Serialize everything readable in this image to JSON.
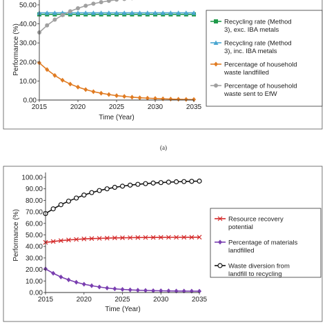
{
  "caption_a": "(a)",
  "chart_data": [
    {
      "type": "line",
      "ylabel": "Performance (%)",
      "xlabel": "Time (Year)",
      "ylim": [
        0,
        50
      ],
      "yticks": [
        "0.00",
        "10.00",
        "20.00",
        "30.00",
        "40.00",
        "50.00"
      ],
      "xticks": [
        "2015",
        "2020",
        "2025",
        "2030",
        "2035"
      ],
      "xlim": [
        2015,
        2035
      ],
      "legend_position": "right",
      "x": [
        2015,
        2016,
        2017,
        2018,
        2019,
        2020,
        2021,
        2022,
        2023,
        2024,
        2025,
        2026,
        2027,
        2028,
        2029,
        2030,
        2031,
        2032,
        2033,
        2034,
        2035
      ],
      "series": [
        {
          "name": "Recycling rate (Method 3), exc. IBA metals",
          "color": "#1f9a4a",
          "marker": "square",
          "values": [
            45.0,
            45.0,
            45.0,
            45.0,
            45.0,
            45.0,
            45.0,
            45.0,
            45.0,
            45.0,
            45.0,
            45.0,
            45.0,
            45.0,
            45.0,
            45.0,
            45.0,
            45.0,
            45.0,
            45.0,
            45.0
          ]
        },
        {
          "name": "Recycling rate (Method 3), inc. IBA metals",
          "color": "#4aa6d0",
          "marker": "triangle",
          "values": [
            45.8,
            45.8,
            45.8,
            45.8,
            45.8,
            45.8,
            45.8,
            45.8,
            45.8,
            45.8,
            45.8,
            45.8,
            45.8,
            45.8,
            45.8,
            45.8,
            45.8,
            45.8,
            45.8,
            45.8,
            45.8
          ]
        },
        {
          "name": "Percentage of household waste landfilled",
          "color": "#e07b22",
          "marker": "diamond",
          "values": [
            19.5,
            16.0,
            12.9,
            10.4,
            8.4,
            6.8,
            5.5,
            4.4,
            3.6,
            2.9,
            2.3,
            1.9,
            1.5,
            1.2,
            1.0,
            0.8,
            0.65,
            0.5,
            0.4,
            0.3,
            0.25
          ]
        },
        {
          "name": "Percentage of household waste sent to EfW",
          "color": "#a0a0a0",
          "marker": "circle",
          "values": [
            35.5,
            39.2,
            42.2,
            44.6,
            46.6,
            48.2,
            49.5,
            50.6,
            51.4,
            52.1,
            52.7,
            53.1,
            53.5,
            53.8,
            54.0,
            54.2,
            54.35,
            54.5,
            54.6,
            54.7,
            54.75
          ]
        }
      ]
    },
    {
      "type": "line",
      "ylabel": "Performance (%)",
      "xlabel": "Time (Year)",
      "ylim": [
        0,
        100
      ],
      "yticks": [
        "0.00",
        "10.00",
        "20.00",
        "30.00",
        "40.00",
        "50.00",
        "60.00",
        "70.00",
        "80.00",
        "90.00",
        "100.00"
      ],
      "xticks": [
        "2015",
        "2020",
        "2025",
        "2030",
        "2035"
      ],
      "xlim": [
        2015,
        2035
      ],
      "legend_position": "right",
      "x": [
        2015,
        2016,
        2017,
        2018,
        2019,
        2020,
        2021,
        2022,
        2023,
        2024,
        2025,
        2026,
        2027,
        2028,
        2029,
        2030,
        2031,
        2032,
        2033,
        2034,
        2035
      ],
      "series": [
        {
          "name": "Resource recovery potential",
          "color": "#d42a2a",
          "marker": "x",
          "values": [
            43.5,
            44.3,
            45.0,
            45.6,
            46.1,
            46.5,
            46.8,
            47.0,
            47.2,
            47.4,
            47.5,
            47.6,
            47.7,
            47.75,
            47.8,
            47.85,
            47.9,
            47.9,
            47.95,
            47.95,
            48.0
          ]
        },
        {
          "name": "Percentage of materials landfilled",
          "color": "#7a3fb0",
          "marker": "diamond",
          "values": [
            20.5,
            16.7,
            13.5,
            11.0,
            8.9,
            7.2,
            5.9,
            4.8,
            3.9,
            3.2,
            2.7,
            2.3,
            2.0,
            1.8,
            1.6,
            1.5,
            1.4,
            1.3,
            1.25,
            1.2,
            1.15
          ]
        },
        {
          "name": "Waste diversion from landfill to recycling",
          "color": "#111111",
          "marker": "circle",
          "values": [
            68.5,
            72.6,
            76.2,
            79.3,
            82.0,
            84.6,
            86.7,
            88.5,
            90.0,
            91.3,
            92.3,
            93.2,
            93.9,
            94.5,
            95.0,
            95.4,
            95.8,
            96.1,
            96.3,
            96.5,
            96.7
          ]
        }
      ]
    }
  ]
}
